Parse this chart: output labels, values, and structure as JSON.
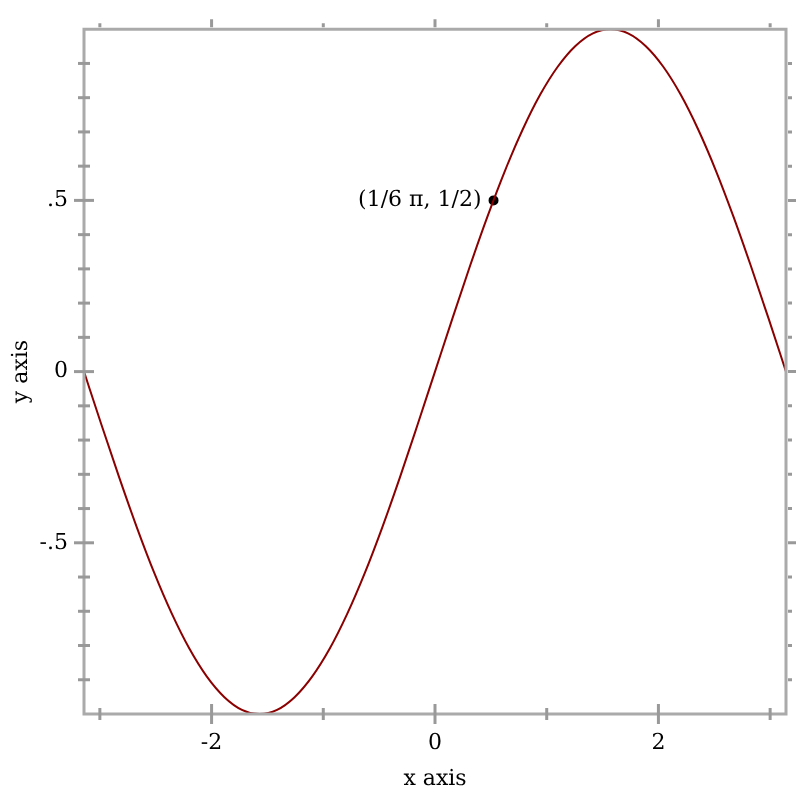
{
  "chart_data": {
    "type": "line",
    "xlabel": "x axis",
    "ylabel": "y axis",
    "xlim": [
      -3.142,
      3.142
    ],
    "ylim": [
      -1,
      1
    ],
    "xticks": [
      {
        "value": -3,
        "label": null
      },
      -2,
      {
        "value": -1,
        "label": null
      },
      0,
      {
        "value": 1,
        "label": null
      },
      2,
      {
        "value": 3,
        "label": null
      }
    ],
    "yticks": [
      {
        "value": -0.9,
        "label": null
      },
      {
        "value": -0.8,
        "label": null
      },
      {
        "value": -0.7,
        "label": null
      },
      {
        "value": -0.6,
        "label": null
      },
      {
        "value": -0.5,
        "label": "-.5"
      },
      {
        "value": -0.4,
        "label": null
      },
      {
        "value": -0.3,
        "label": null
      },
      {
        "value": -0.2,
        "label": null
      },
      {
        "value": -0.1,
        "label": null
      },
      0,
      {
        "value": 0.1,
        "label": null
      },
      {
        "value": 0.2,
        "label": null
      },
      {
        "value": 0.3,
        "label": null
      },
      {
        "value": 0.4,
        "label": null
      },
      {
        "value": 0.5,
        "label": ".5"
      },
      {
        "value": 0.6,
        "label": null
      },
      {
        "value": 0.7,
        "label": null
      },
      {
        "value": 0.8,
        "label": null
      },
      {
        "value": 0.9,
        "label": null
      }
    ],
    "grid": false,
    "legend": false,
    "line_style": "solid",
    "series": [
      {
        "color": "#8b0000",
        "x": [
          -3.142,
          -2.985,
          -2.827,
          -2.67,
          -2.513,
          -2.356,
          -2.199,
          -2.042,
          -1.885,
          -1.728,
          -1.571,
          -1.414,
          -1.257,
          -1.1,
          -0.942,
          -0.785,
          -0.628,
          -0.471,
          -0.314,
          -0.157,
          0,
          0.157,
          0.314,
          0.471,
          0.628,
          0.785,
          0.942,
          1.1,
          1.257,
          1.414,
          1.571,
          1.728,
          1.885,
          2.042,
          2.199,
          2.356,
          2.513,
          2.67,
          2.827,
          2.985,
          3.142
        ],
        "values": [
          0,
          -0.156,
          -0.309,
          -0.454,
          -0.588,
          -0.707,
          -0.809,
          -0.891,
          -0.951,
          -0.988,
          -1,
          -0.988,
          -0.951,
          -0.891,
          -0.809,
          -0.707,
          -0.588,
          -0.454,
          -0.309,
          -0.156,
          0,
          0.156,
          0.309,
          0.454,
          0.588,
          0.707,
          0.809,
          0.891,
          0.951,
          0.988,
          1,
          0.988,
          0.951,
          0.891,
          0.809,
          0.707,
          0.588,
          0.454,
          0.309,
          0.156,
          0
        ]
      },
      {
        "type": "scatter",
        "marker": "circle",
        "color": "#000000",
        "x": [
          0.524
        ],
        "values": [
          0.5
        ]
      }
    ],
    "annotations": [
      {
        "text": "(1/6 π, 1/2)",
        "x": 0.524,
        "y": 0.5
      }
    ]
  }
}
